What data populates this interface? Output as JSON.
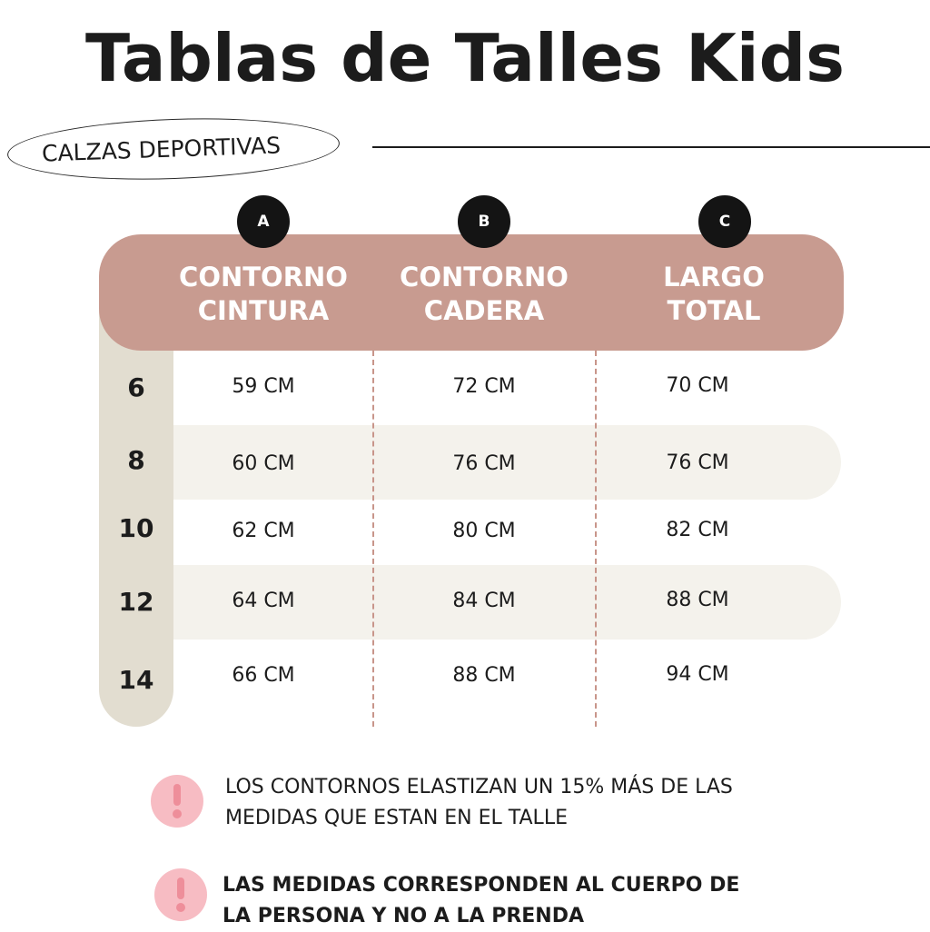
{
  "title": "Tablas de Talles Kids",
  "category_label": "CALZAS DEPORTIVAS",
  "columns": [
    {
      "letter": "A",
      "line1": "CONTORNO",
      "line2": "CINTURA"
    },
    {
      "letter": "B",
      "line1": "CONTORNO",
      "line2": "CADERA"
    },
    {
      "letter": "C",
      "line1": "LARGO",
      "line2": "TOTAL"
    }
  ],
  "rows": [
    {
      "size": "6",
      "cells": [
        "59 CM",
        "72 CM",
        "70 CM"
      ]
    },
    {
      "size": "8",
      "cells": [
        "60 CM",
        "76 CM",
        "76 CM"
      ]
    },
    {
      "size": "10",
      "cells": [
        "62 CM",
        "80 CM",
        "82 CM"
      ]
    },
    {
      "size": "12",
      "cells": [
        "64 CM",
        "84 CM",
        "88 CM"
      ]
    },
    {
      "size": "14",
      "cells": [
        "66 CM",
        "88 CM",
        "94 CM"
      ]
    }
  ],
  "notes": [
    {
      "line1": "LOS CONTORNOS ELASTIZAN UN 15% MÁS DE LAS",
      "line2": "MEDIDAS QUE ESTAN EN EL TALLE"
    },
    {
      "line1": "LAS MEDIDAS CORRESPONDEN AL CUERPO DE",
      "line2": "LA PERSONA Y NO A LA PRENDA"
    }
  ],
  "icons": {
    "note": "exclamation-icon"
  },
  "colors": {
    "header": "#c89b90",
    "strip": "#e2ddd0",
    "stripe": "#f4f2ec",
    "note_icon": "#f7bcc3"
  }
}
